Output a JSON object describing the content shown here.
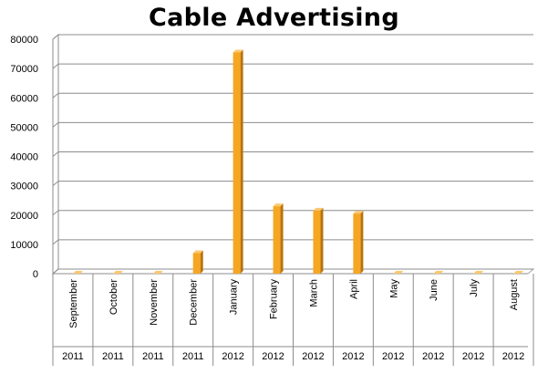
{
  "chart_data": {
    "type": "bar",
    "title": "Cable Advertising",
    "categories": [
      "September",
      "October",
      "November",
      "December",
      "January",
      "February",
      "March",
      "April",
      "May",
      "June",
      "July",
      "August"
    ],
    "years": [
      "2011",
      "2011",
      "2011",
      "2011",
      "2012",
      "2012",
      "2012",
      "2012",
      "2012",
      "2012",
      "2012",
      "2012"
    ],
    "values": [
      0,
      0,
      0,
      7000,
      75500,
      23000,
      21500,
      20500,
      0,
      0,
      0,
      0
    ],
    "ylim": [
      0,
      80000
    ],
    "yticks": [
      "0",
      "10000",
      "20000",
      "30000",
      "40000",
      "50000",
      "60000",
      "70000",
      "80000"
    ],
    "xlabel": "",
    "ylabel": "",
    "grid": true,
    "legend": "none",
    "colors": {
      "bar_front": "#F5A623",
      "bar_side": "#B8730C",
      "bar_top": "#FBC870",
      "grid": "#8C8C8C",
      "wall": "#A6A6A6"
    }
  }
}
